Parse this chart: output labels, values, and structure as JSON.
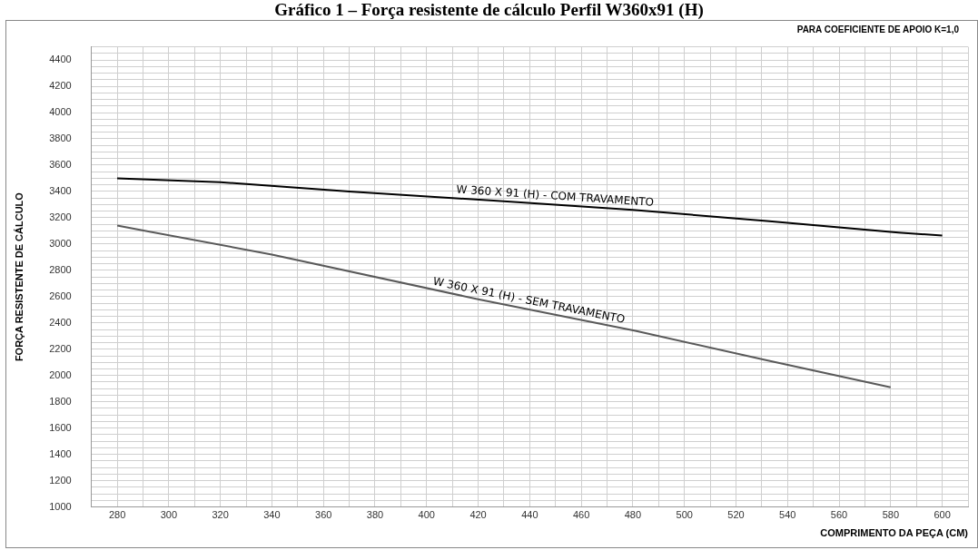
{
  "chart_data": {
    "type": "line",
    "title": "Gráfico 1 – Força resistente de cálculo Perfil W360x91 (H)",
    "xlabel": "COMPRIMENTO DA PEÇA (CM)",
    "ylabel": "FORÇA RESISTENTE DE CÁLCULO",
    "annotations": [
      "PARA COEFICIENTE DE APOIO K=1,0"
    ],
    "series": [
      {
        "name": "W 360 X 91 (H) - COM TRAVAMENTO",
        "color": "#000000",
        "x": [
          280,
          320,
          370,
          426,
          480,
          532,
          583,
          600
        ],
        "values": [
          3500,
          3470,
          3400,
          3330,
          3260,
          3175,
          3087,
          3065
        ]
      },
      {
        "name": "W 360 X 91 (H) - SEM TRAVAMENTO",
        "color": "#595959",
        "x": [
          280,
          340,
          420,
          481,
          532,
          580
        ],
        "values": [
          3140,
          2920,
          2580,
          2340,
          2115,
          1910
        ]
      }
    ],
    "xlim": [
      270,
      610
    ],
    "xticks": [
      {
        "value": 270,
        "label": null
      },
      280,
      {
        "value": 290,
        "label": null
      },
      300,
      {
        "value": 310,
        "label": null
      },
      320,
      {
        "value": 330,
        "label": null
      },
      340,
      {
        "value": 350,
        "label": null
      },
      360,
      {
        "value": 370,
        "label": null
      },
      380,
      {
        "value": 390,
        "label": null
      },
      400,
      {
        "value": 410,
        "label": null
      },
      420,
      {
        "value": 430,
        "label": null
      },
      440,
      {
        "value": 450,
        "label": null
      },
      460,
      {
        "value": 470,
        "label": null
      },
      480,
      {
        "value": 490,
        "label": null
      },
      500,
      {
        "value": 510,
        "label": null
      },
      520,
      {
        "value": 530,
        "label": null
      },
      540,
      {
        "value": 550,
        "label": null
      },
      560,
      {
        "value": 570,
        "label": null
      },
      580,
      {
        "value": 590,
        "label": null
      },
      600,
      {
        "value": 610,
        "label": null
      }
    ],
    "ylim": [
      1000,
      4500
    ],
    "yticks": [
      1000,
      {
        "value": 1050,
        "label": null
      },
      {
        "value": 1100,
        "label": null
      },
      {
        "value": 1150,
        "label": null
      },
      1200,
      {
        "value": 1250,
        "label": null
      },
      {
        "value": 1300,
        "label": null
      },
      {
        "value": 1350,
        "label": null
      },
      1400,
      {
        "value": 1450,
        "label": null
      },
      {
        "value": 1500,
        "label": null
      },
      {
        "value": 1550,
        "label": null
      },
      1600,
      {
        "value": 1650,
        "label": null
      },
      {
        "value": 1700,
        "label": null
      },
      {
        "value": 1750,
        "label": null
      },
      1800,
      {
        "value": 1850,
        "label": null
      },
      {
        "value": 1900,
        "label": null
      },
      {
        "value": 1950,
        "label": null
      },
      2000,
      {
        "value": 2050,
        "label": null
      },
      {
        "value": 2100,
        "label": null
      },
      {
        "value": 2150,
        "label": null
      },
      2200,
      {
        "value": 2250,
        "label": null
      },
      {
        "value": 2300,
        "label": null
      },
      {
        "value": 2350,
        "label": null
      },
      2400,
      {
        "value": 2450,
        "label": null
      },
      {
        "value": 2500,
        "label": null
      },
      {
        "value": 2550,
        "label": null
      },
      2600,
      {
        "value": 2650,
        "label": null
      },
      {
        "value": 2700,
        "label": null
      },
      {
        "value": 2750,
        "label": null
      },
      2800,
      {
        "value": 2850,
        "label": null
      },
      {
        "value": 2900,
        "label": null
      },
      {
        "value": 2950,
        "label": null
      },
      3000,
      {
        "value": 3050,
        "label": null
      },
      {
        "value": 3100,
        "label": null
      },
      {
        "value": 3150,
        "label": null
      },
      3200,
      {
        "value": 3250,
        "label": null
      },
      {
        "value": 3300,
        "label": null
      },
      {
        "value": 3350,
        "label": null
      },
      3400,
      {
        "value": 3450,
        "label": null
      },
      {
        "value": 3500,
        "label": null
      },
      {
        "value": 3550,
        "label": null
      },
      3600,
      {
        "value": 3650,
        "label": null
      },
      {
        "value": 3700,
        "label": null
      },
      {
        "value": 3750,
        "label": null
      },
      3800,
      {
        "value": 3850,
        "label": null
      },
      {
        "value": 3900,
        "label": null
      },
      {
        "value": 3950,
        "label": null
      },
      4000,
      {
        "value": 4050,
        "label": null
      },
      {
        "value": 4100,
        "label": null
      },
      {
        "value": 4150,
        "label": null
      },
      4200,
      {
        "value": 4250,
        "label": null
      },
      {
        "value": 4300,
        "label": null
      },
      {
        "value": 4350,
        "label": null
      },
      4400,
      {
        "value": 4450,
        "label": null
      },
      {
        "value": 4500,
        "label": null
      }
    ],
    "grid": true,
    "legend": false,
    "marker": "none",
    "line_style": "solid"
  }
}
